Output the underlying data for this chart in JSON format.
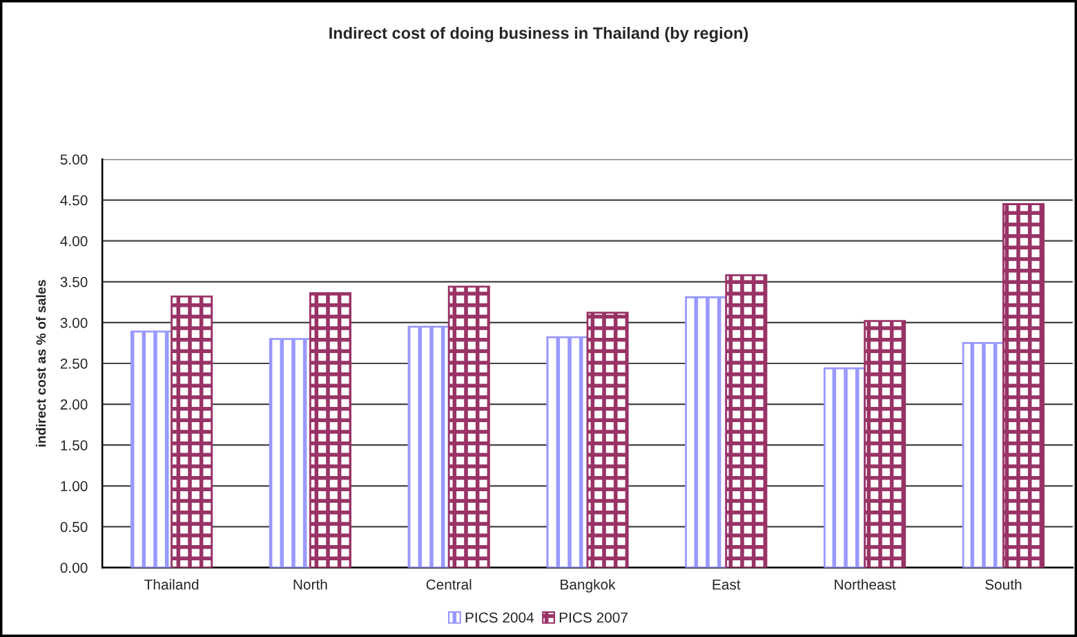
{
  "chart_data": {
    "type": "bar",
    "title": "Indirect cost of doing business in Thailand (by region)",
    "ylabel": "indirect cost as % of sales",
    "categories": [
      "Thailand",
      "North",
      "Central",
      "Bangkok",
      "East",
      "Northeast",
      "South"
    ],
    "series": [
      {
        "name": "PICS 2004",
        "color": "#9999ff",
        "values": [
          2.89,
          2.8,
          2.95,
          2.82,
          3.31,
          2.44,
          2.75
        ]
      },
      {
        "name": "PICS 2007",
        "color": "#993366",
        "values": [
          3.32,
          3.36,
          3.44,
          3.12,
          3.58,
          3.02,
          4.45
        ]
      }
    ],
    "ylim": [
      0,
      5
    ],
    "yticks": [
      {
        "value": 0,
        "label": "0.00"
      },
      {
        "value": 0.5,
        "label": "0.50"
      },
      {
        "value": 1,
        "label": "1.00"
      },
      {
        "value": 1.5,
        "label": "1.50"
      },
      {
        "value": 2,
        "label": "2.00"
      },
      {
        "value": 2.5,
        "label": "2.50"
      },
      {
        "value": 3,
        "label": "3.00"
      },
      {
        "value": 3.5,
        "label": "3.50"
      },
      {
        "value": 4,
        "label": "4.00"
      },
      {
        "value": 4.5,
        "label": "4.50"
      },
      {
        "value": 5,
        "label": "5.00"
      }
    ],
    "grid": "y",
    "legend": "bottom"
  }
}
